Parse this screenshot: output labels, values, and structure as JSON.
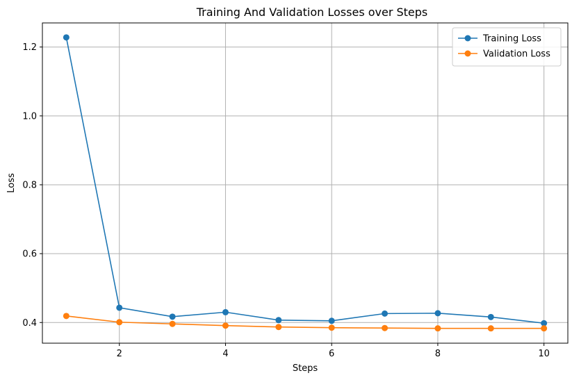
{
  "chart_data": {
    "type": "line",
    "title": "Training And Validation Losses over Steps",
    "xlabel": "Steps",
    "ylabel": "Loss",
    "xlim": [
      0.55,
      10.45
    ],
    "ylim": [
      0.34,
      1.27
    ],
    "xticks": [
      2,
      4,
      6,
      8,
      10
    ],
    "yticks": [
      0.4,
      0.6,
      0.8,
      1.0,
      1.2
    ],
    "ytick_labels": [
      "0.4",
      "0.6",
      "0.8",
      "1.0",
      "1.2"
    ],
    "grid": true,
    "legend_position": "top-right",
    "x": [
      1,
      2,
      3,
      4,
      5,
      6,
      7,
      8,
      9,
      10
    ],
    "series": [
      {
        "name": "Training Loss",
        "color": "#1f77b4",
        "values": [
          1.228,
          0.443,
          0.417,
          0.43,
          0.407,
          0.405,
          0.426,
          0.427,
          0.416,
          0.398
        ]
      },
      {
        "name": "Validation Loss",
        "color": "#ff7f0e",
        "values": [
          0.419,
          0.401,
          0.396,
          0.391,
          0.387,
          0.385,
          0.384,
          0.383,
          0.383,
          0.383
        ]
      }
    ]
  }
}
